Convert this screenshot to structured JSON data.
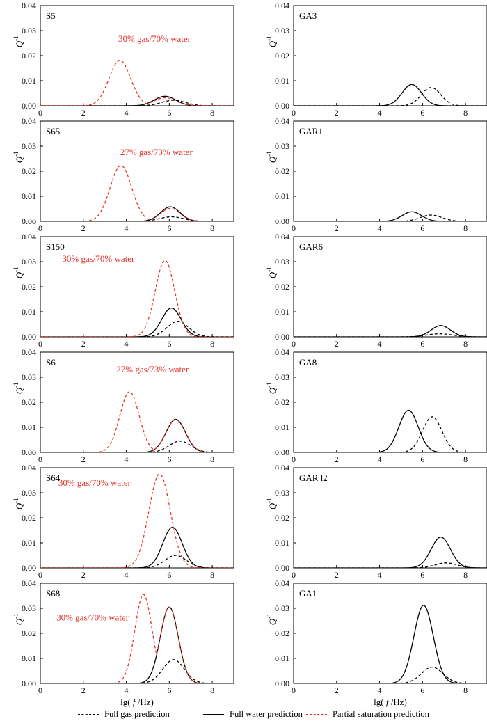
{
  "chart_data": [
    {
      "panel": "S5",
      "type": "line",
      "annotation": "30% gas/70% water",
      "xlim": [
        0,
        9
      ],
      "ylim": [
        0,
        0.04
      ],
      "xticks": [
        0,
        2,
        4,
        6,
        8
      ],
      "yticks": [
        "0.00",
        "0.01",
        "0.02",
        "0.03",
        "0.04"
      ],
      "series": [
        {
          "name": "Full gas prediction",
          "peak_x": 6.2,
          "peak_y": 0.0022,
          "width": 0.55
        },
        {
          "name": "Full water prediction",
          "peak_x": 5.8,
          "peak_y": 0.0038,
          "width": 0.5
        },
        {
          "name": "Partial saturation prediction",
          "peak_x": 3.7,
          "peak_y": 0.0182,
          "width": 0.5,
          "second_x": 5.8,
          "second_y": 0.0032,
          "second_width": 0.5
        }
      ]
    },
    {
      "panel": "GA3",
      "type": "line",
      "annotation": "",
      "xlim": [
        0,
        9
      ],
      "ylim": [
        0,
        0.04
      ],
      "xticks": [
        0,
        2,
        4,
        6,
        8
      ],
      "yticks": [
        "0.00",
        "0.01",
        "0.02",
        "0.03",
        "0.04"
      ],
      "series": [
        {
          "name": "Full gas prediction",
          "peak_x": 6.4,
          "peak_y": 0.0073,
          "width": 0.45
        },
        {
          "name": "Full water prediction",
          "peak_x": 5.5,
          "peak_y": 0.0085,
          "width": 0.45
        }
      ]
    },
    {
      "panel": "S65",
      "type": "line",
      "annotation": "27% gas/73% water",
      "xlim": [
        0,
        9
      ],
      "ylim": [
        0,
        0.04
      ],
      "xticks": [
        0,
        2,
        4,
        6,
        8
      ],
      "yticks": [
        "0.00",
        "0.01",
        "0.02",
        "0.03",
        "0.04"
      ],
      "series": [
        {
          "name": "Full gas prediction",
          "peak_x": 6.1,
          "peak_y": 0.0018,
          "width": 0.55
        },
        {
          "name": "Full water prediction",
          "peak_x": 6.05,
          "peak_y": 0.0058,
          "width": 0.45
        },
        {
          "name": "Partial saturation prediction",
          "peak_x": 3.75,
          "peak_y": 0.0223,
          "width": 0.5,
          "second_x": 6.05,
          "second_y": 0.0052,
          "second_width": 0.45
        }
      ]
    },
    {
      "panel": "GAR1",
      "type": "line",
      "annotation": "",
      "xlim": [
        0,
        9
      ],
      "ylim": [
        0,
        0.04
      ],
      "xticks": [
        0,
        2,
        4,
        6,
        8
      ],
      "yticks": [
        "0.00",
        "0.01",
        "0.02",
        "0.03",
        "0.04"
      ],
      "series": [
        {
          "name": "Full gas prediction",
          "peak_x": 6.4,
          "peak_y": 0.0025,
          "width": 0.5
        },
        {
          "name": "Full water prediction",
          "peak_x": 5.5,
          "peak_y": 0.0038,
          "width": 0.45
        }
      ]
    },
    {
      "panel": "S150",
      "type": "line",
      "annotation": "30% gas/70% water",
      "xlim": [
        0,
        9
      ],
      "ylim": [
        0,
        0.04
      ],
      "xticks": [
        0,
        2,
        4,
        6,
        8
      ],
      "yticks": [
        "0.00",
        "0.01",
        "0.02",
        "0.03",
        "0.04"
      ],
      "series": [
        {
          "name": "Full gas prediction",
          "peak_x": 6.4,
          "peak_y": 0.0062,
          "width": 0.5
        },
        {
          "name": "Full water prediction",
          "peak_x": 6.1,
          "peak_y": 0.0115,
          "width": 0.45
        },
        {
          "name": "Partial saturation prediction",
          "peak_x": 5.8,
          "peak_y": 0.0305,
          "width": 0.45
        }
      ]
    },
    {
      "panel": "GAR6",
      "type": "line",
      "annotation": "",
      "xlim": [
        0,
        9
      ],
      "ylim": [
        0,
        0.04
      ],
      "xticks": [
        0,
        2,
        4,
        6,
        8
      ],
      "yticks": [
        "0.00",
        "0.01",
        "0.02",
        "0.03",
        "0.04"
      ],
      "series": [
        {
          "name": "Full gas prediction",
          "peak_x": 6.8,
          "peak_y": 0.0012,
          "width": 0.6
        },
        {
          "name": "Full water prediction",
          "peak_x": 6.85,
          "peak_y": 0.0045,
          "width": 0.45
        }
      ]
    },
    {
      "panel": "S6",
      "type": "line",
      "annotation": "27% gas/73% water",
      "xlim": [
        0,
        9
      ],
      "ylim": [
        0,
        0.04
      ],
      "xticks": [
        0,
        2,
        4,
        6,
        8
      ],
      "yticks": [
        "0.00",
        "0.01",
        "0.02",
        "0.03",
        "0.04"
      ],
      "series": [
        {
          "name": "Full gas prediction",
          "peak_x": 6.5,
          "peak_y": 0.0045,
          "width": 0.5
        },
        {
          "name": "Full water prediction",
          "peak_x": 6.3,
          "peak_y": 0.0132,
          "width": 0.45
        },
        {
          "name": "Partial saturation prediction",
          "peak_x": 4.15,
          "peak_y": 0.0242,
          "width": 0.45,
          "second_x": 6.3,
          "second_y": 0.013,
          "second_width": 0.45
        }
      ]
    },
    {
      "panel": "GA8",
      "type": "line",
      "annotation": "",
      "xlim": [
        0,
        9
      ],
      "ylim": [
        0,
        0.04
      ],
      "xticks": [
        0,
        2,
        4,
        6,
        8
      ],
      "yticks": [
        "0.00",
        "0.01",
        "0.02",
        "0.03",
        "0.04"
      ],
      "series": [
        {
          "name": "Full gas prediction",
          "peak_x": 6.45,
          "peak_y": 0.0142,
          "width": 0.45
        },
        {
          "name": "Full water prediction",
          "peak_x": 5.35,
          "peak_y": 0.0168,
          "width": 0.45
        }
      ]
    },
    {
      "panel": "S64",
      "type": "line",
      "annotation": "30% gas/70% water",
      "xlim": [
        0,
        9
      ],
      "ylim": [
        0,
        0.04
      ],
      "xticks": [
        0,
        2,
        4,
        6,
        8
      ],
      "yticks": [
        "0.00",
        "0.01",
        "0.02",
        "0.03",
        "0.04"
      ],
      "series": [
        {
          "name": "Full gas prediction",
          "peak_x": 6.3,
          "peak_y": 0.005,
          "width": 0.5
        },
        {
          "name": "Full water prediction",
          "peak_x": 6.15,
          "peak_y": 0.0162,
          "width": 0.45
        },
        {
          "name": "Partial saturation prediction",
          "peak_x": 5.55,
          "peak_y": 0.0375,
          "width": 0.5
        }
      ]
    },
    {
      "panel": "GAR l2",
      "type": "line",
      "annotation": "",
      "xlim": [
        0,
        9
      ],
      "ylim": [
        0,
        0.04
      ],
      "xticks": [
        0,
        2,
        4,
        6,
        8
      ],
      "yticks": [
        "0.00",
        "0.01",
        "0.02",
        "0.03",
        "0.04"
      ],
      "series": [
        {
          "name": "Full gas prediction",
          "peak_x": 7.1,
          "peak_y": 0.002,
          "width": 0.5
        },
        {
          "name": "Full water prediction",
          "peak_x": 6.85,
          "peak_y": 0.0123,
          "width": 0.45
        }
      ]
    },
    {
      "panel": "S68",
      "type": "line",
      "annotation": "30% gas/70% water",
      "xlim": [
        0,
        9
      ],
      "ylim": [
        0,
        0.04
      ],
      "xticks": [
        0,
        2,
        4,
        6,
        8
      ],
      "yticks": [
        "0.00",
        "0.01",
        "0.02",
        "0.03",
        "0.04"
      ],
      "series": [
        {
          "name": "Full gas prediction",
          "peak_x": 6.2,
          "peak_y": 0.0095,
          "width": 0.5
        },
        {
          "name": "Full water prediction",
          "peak_x": 6.0,
          "peak_y": 0.0305,
          "width": 0.42
        },
        {
          "name": "Partial saturation prediction",
          "peak_x": 4.8,
          "peak_y": 0.0355,
          "width": 0.4,
          "second_x": 6.0,
          "second_y": 0.0305,
          "second_width": 0.42
        }
      ]
    },
    {
      "panel": "GA1",
      "type": "line",
      "annotation": "",
      "xlim": [
        0,
        9
      ],
      "ylim": [
        0,
        0.04
      ],
      "xticks": [
        0,
        2,
        4,
        6,
        8
      ],
      "yticks": [
        "0.00",
        "0.01",
        "0.02",
        "0.03",
        "0.04"
      ],
      "series": [
        {
          "name": "Full gas prediction",
          "peak_x": 6.45,
          "peak_y": 0.0065,
          "width": 0.5
        },
        {
          "name": "Full water prediction",
          "peak_x": 6.05,
          "peak_y": 0.0312,
          "width": 0.45
        }
      ]
    }
  ],
  "axis": {
    "xlabel_pre": "lg(",
    "xlabel_f": "f",
    "xlabel_post": "/Hz)",
    "ylabel": "Q",
    "ylabel_sup": "-1"
  },
  "legend": {
    "gas": "Full gas prediction",
    "water": "Full water prediction",
    "partial": "Partial saturation prediction"
  },
  "colors": {
    "gas": "#000000",
    "water": "#000000",
    "partial": "#e8312a"
  }
}
